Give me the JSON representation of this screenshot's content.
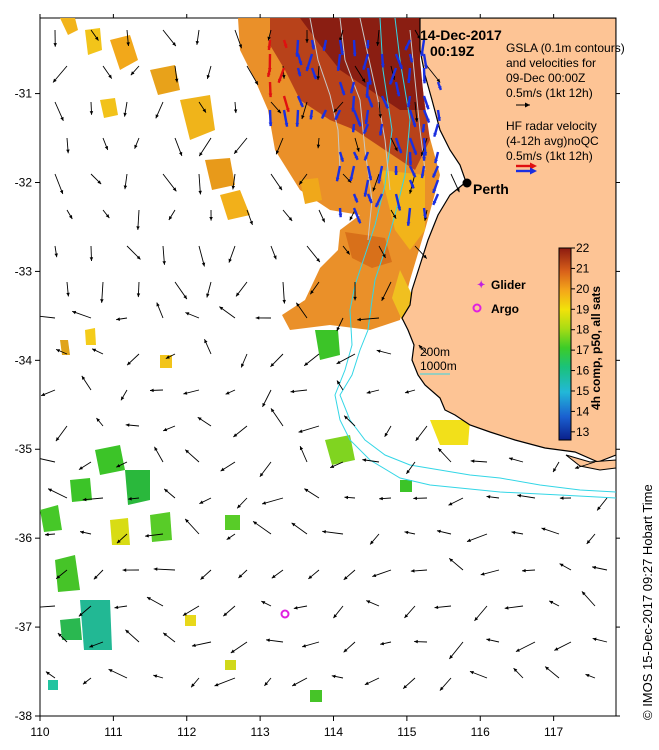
{
  "map": {
    "date": "14-Dec-2017",
    "time": "00:19Z",
    "city": "Perth",
    "credit": "© IMOS 15-Dec-2017 09:27 Hobart Time",
    "x_ticks": [
      "110",
      "111",
      "112",
      "113",
      "114",
      "115",
      "116",
      "117"
    ],
    "y_ticks": [
      "-31",
      "-32",
      "-33",
      "-34",
      "-35",
      "-36",
      "-37",
      "-38"
    ],
    "lon_range": [
      110,
      117.85
    ],
    "lat_range": [
      -38,
      -30.15
    ]
  },
  "legend": {
    "gsla_lines": [
      "GSLA (0.1m contours)",
      "and velocities for",
      "09-Dec 00:00Z",
      "0.5m/s (1kt 12h)"
    ],
    "hf_lines": [
      "HF radar velocity",
      "(4-12h avg)noQC",
      "0.5m/s (1kt 12h)"
    ],
    "glider": "Glider",
    "argo": "Argo",
    "depth_200": "200m",
    "depth_1000": "1000m"
  },
  "colorbar": {
    "title": "4h comp, p50, all sats",
    "ticks": [
      "22",
      "21",
      "20",
      "19",
      "18",
      "17",
      "16",
      "15",
      "14",
      "13"
    ],
    "range": [
      12.6,
      22
    ]
  },
  "colors": {
    "land": "#fdc495",
    "coast": "#000000",
    "contour": "#c8c8c8",
    "isobath": "#33d6e6",
    "hf_radar": "#1a2fe0",
    "hf_radar_alt": "#e01010",
    "argo": "#e020e0",
    "glider": "#c020e0"
  }
}
